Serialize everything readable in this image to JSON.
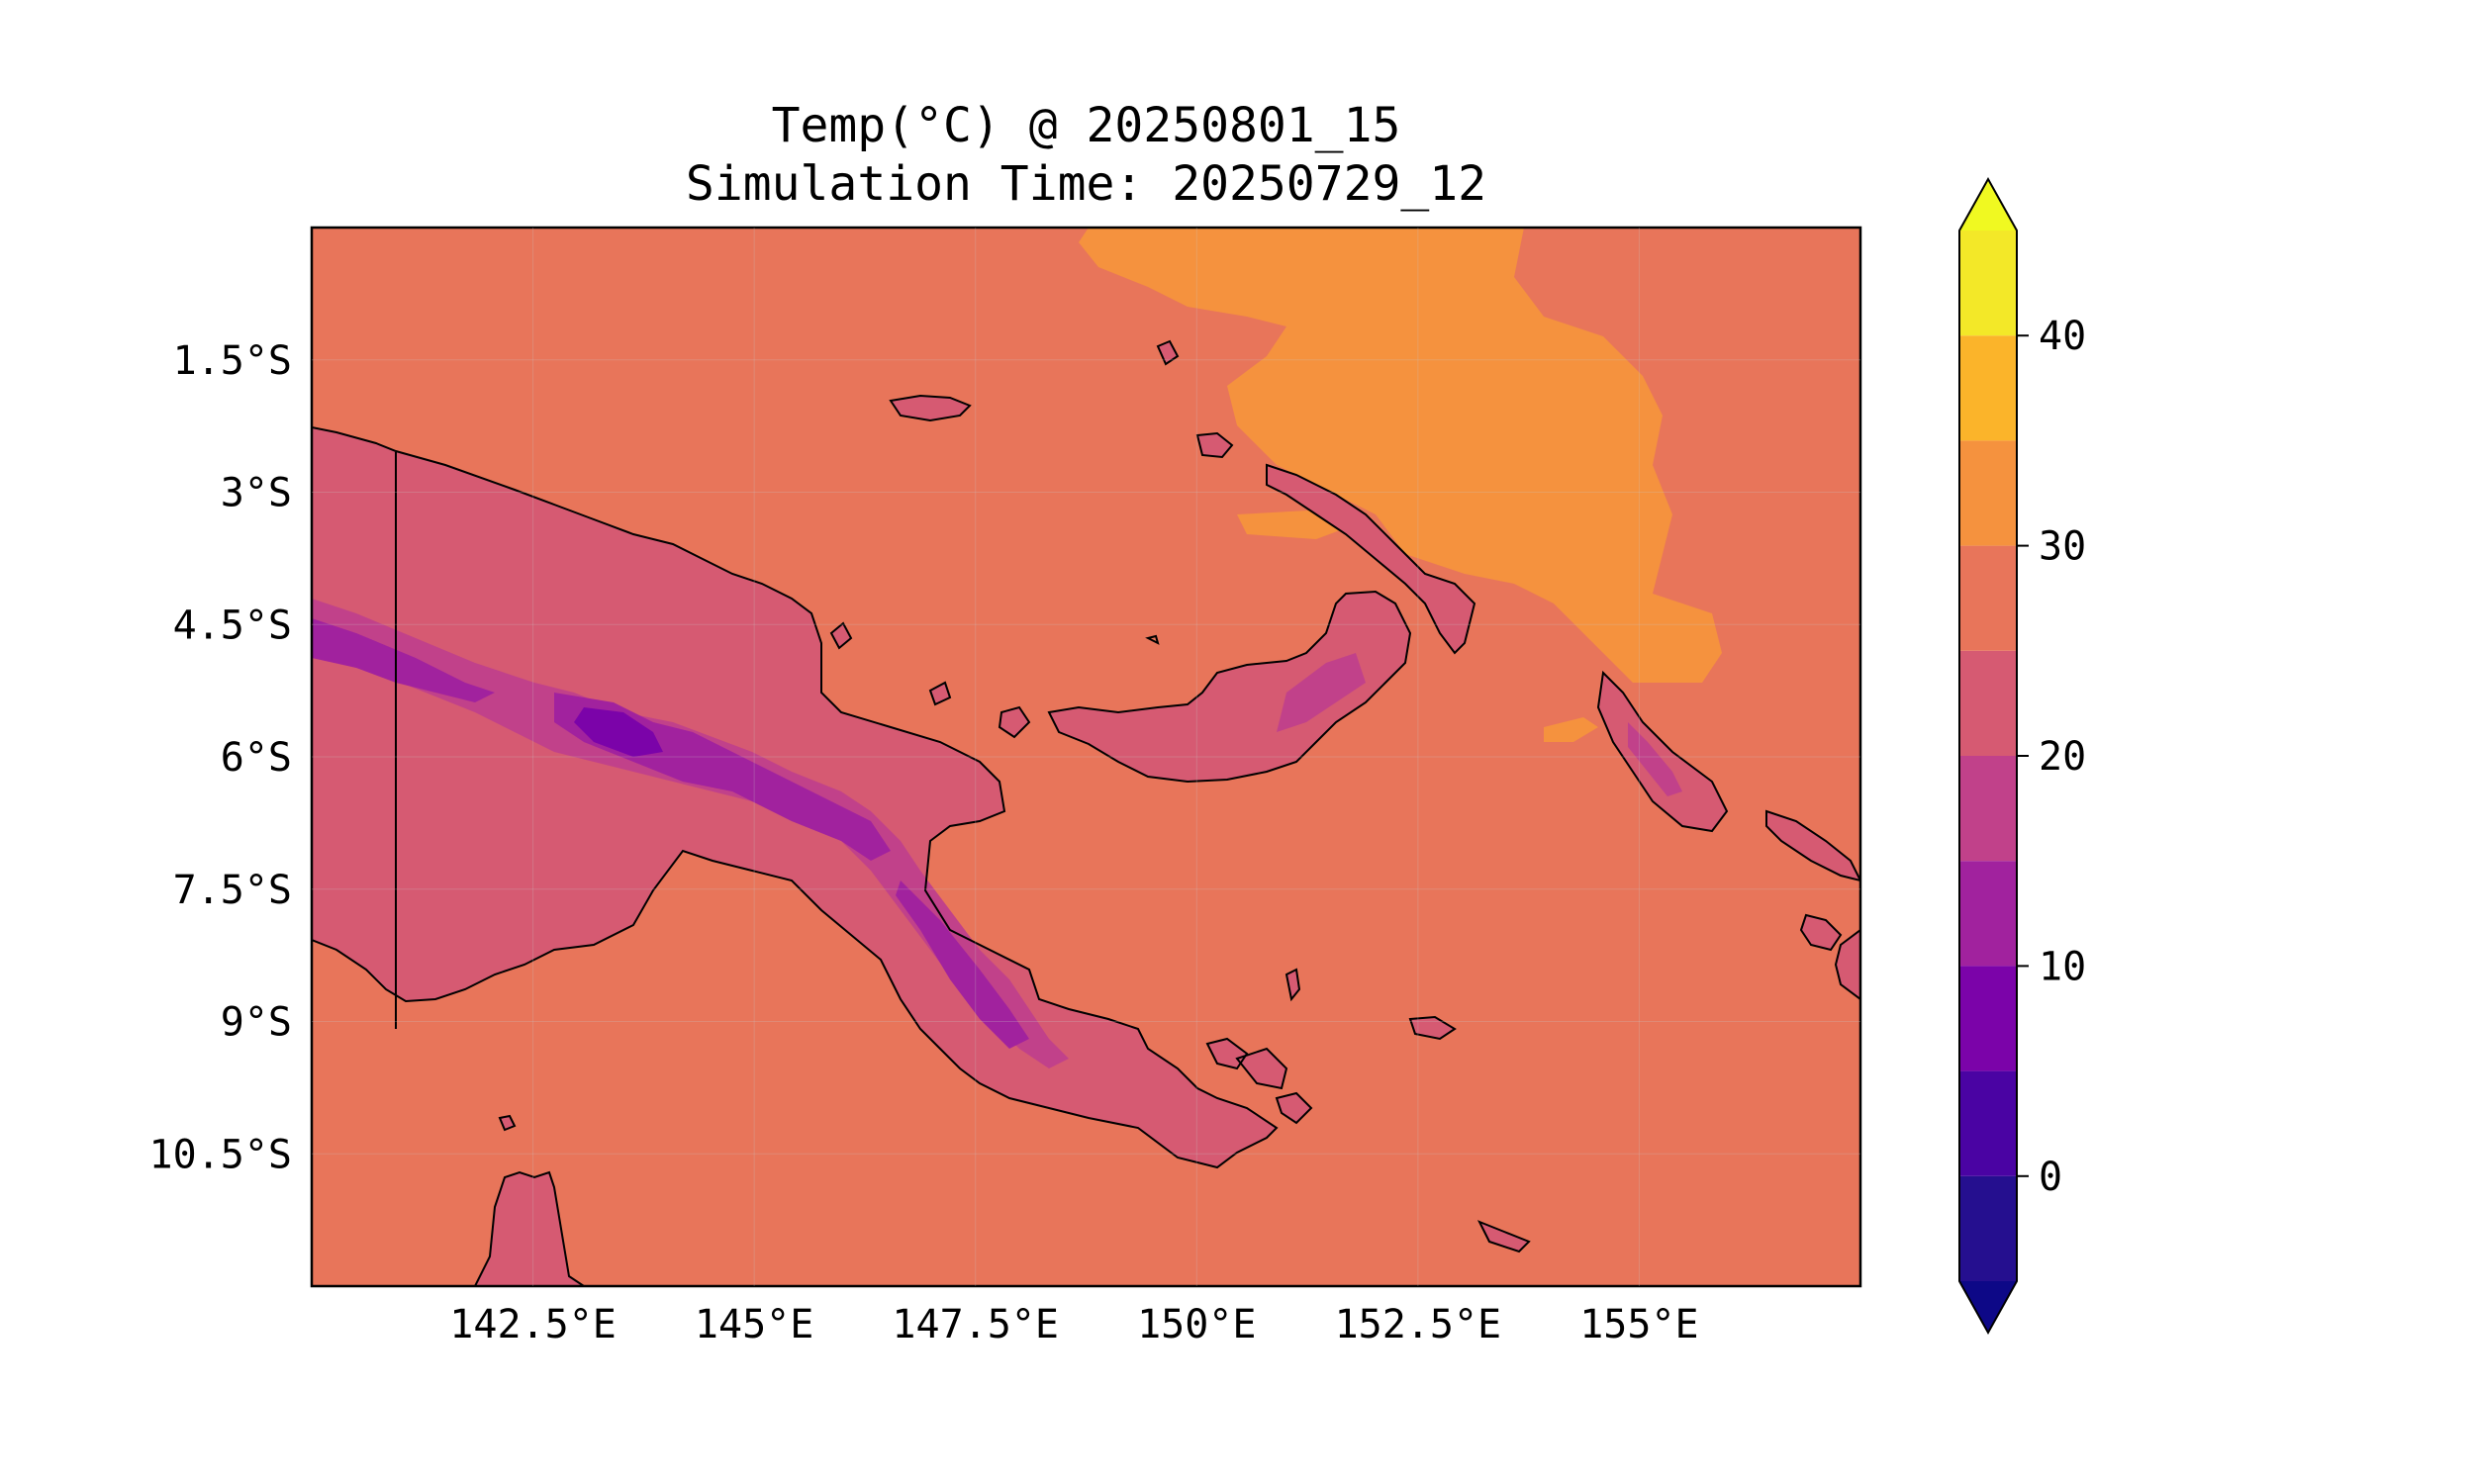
{
  "title": {
    "line1": "Temp(°C) @ 20250801_15",
    "line2": "Simulation Time: 20250729_12"
  },
  "map": {
    "region": "Papua New Guinea",
    "lon_range": [
      140,
      157.5
    ],
    "lat_range": [
      -12,
      0
    ],
    "x_ticks": [
      "142.5°E",
      "145°E",
      "147.5°E",
      "150°E",
      "152.5°E",
      "155°E"
    ],
    "x_tick_values": [
      142.5,
      145,
      147.5,
      150,
      152.5,
      155
    ],
    "y_ticks": [
      "1.5°S",
      "3°S",
      "4.5°S",
      "6°S",
      "7.5°S",
      "9°S",
      "10.5°S"
    ],
    "y_tick_values": [
      -1.5,
      -3,
      -4.5,
      -6,
      -7.5,
      -9,
      -10.5
    ],
    "ocean_color": "#e8755a",
    "warm_ocean_color": "#f5923e"
  },
  "colorbar": {
    "tick_labels": [
      "0",
      "10",
      "20",
      "30",
      "40"
    ],
    "tick_values": [
      0,
      10,
      20,
      30,
      40
    ],
    "levels": [
      -5,
      0,
      5,
      10,
      15,
      20,
      25,
      30,
      35,
      40,
      45
    ],
    "colors": [
      "#250f8f",
      "#4a03a3",
      "#7b03a9",
      "#a1229e",
      "#c1418a",
      "#d65a72",
      "#e8755a",
      "#f5923e",
      "#fbb42a",
      "#f3e828"
    ],
    "under_color": "#0d0887",
    "over_color": "#f0f921",
    "cmap": "plasma"
  }
}
